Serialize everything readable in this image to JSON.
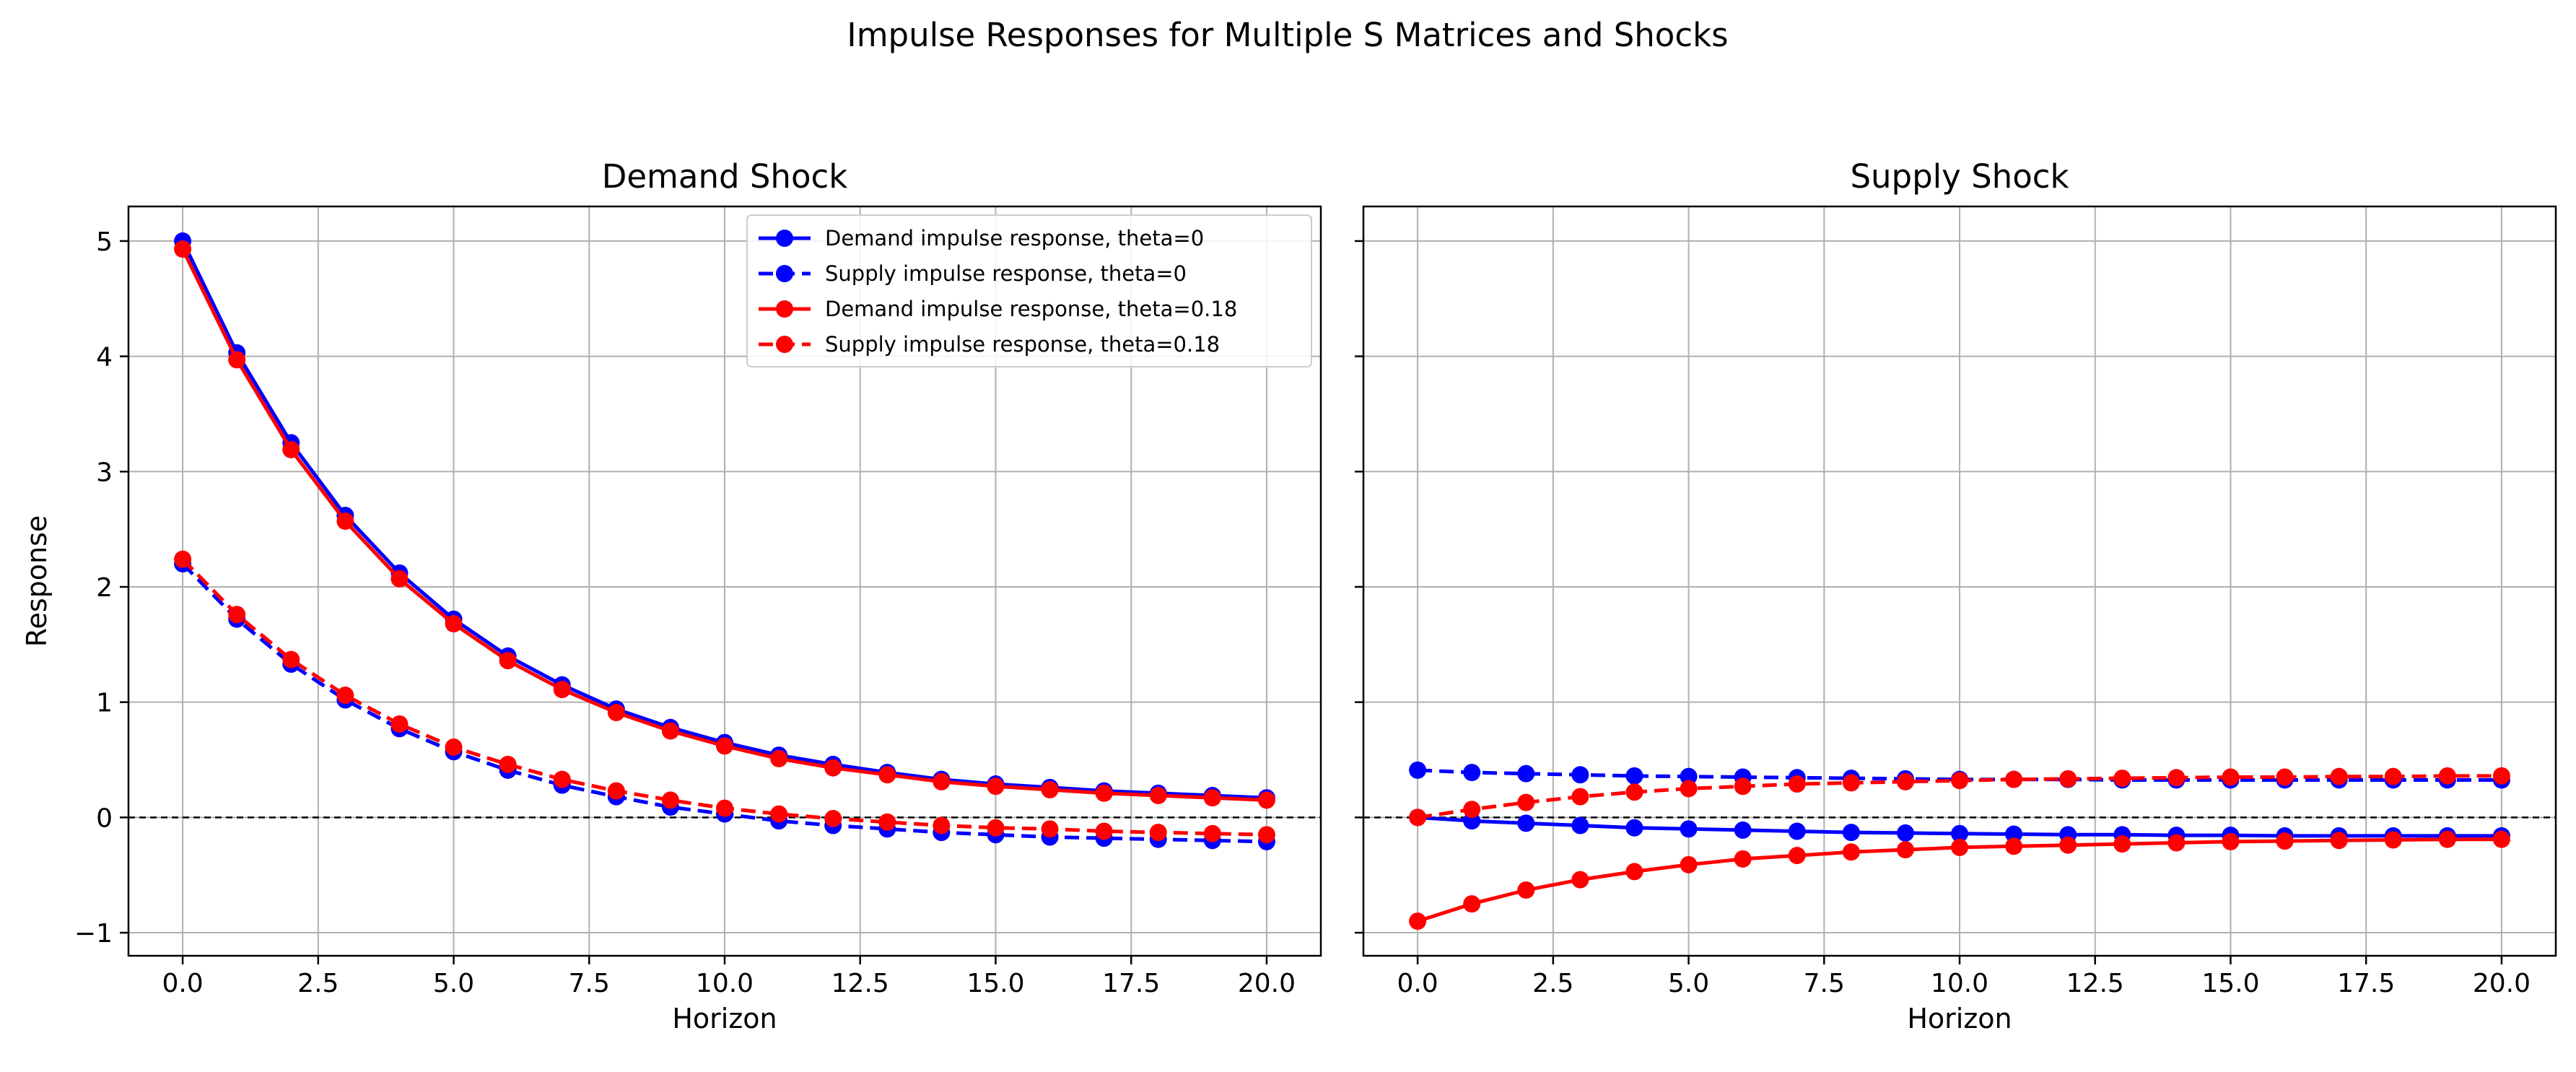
{
  "figure": {
    "suptitle": "Impulse Responses for Multiple S Matrices and Shocks"
  },
  "colors": {
    "theta0": "#0000ff",
    "theta018": "#ff0000",
    "zero_line": "#000000",
    "grid": "#b0b0b0"
  },
  "chart_data": [
    {
      "type": "line",
      "title": "Demand Shock",
      "xlabel": "Horizon",
      "ylabel": "Response",
      "xlim": [
        -1,
        21
      ],
      "ylim": [
        -1.2,
        5.3
      ],
      "xticks": [
        0,
        2.5,
        5,
        7.5,
        10,
        12.5,
        15,
        17.5,
        20
      ],
      "xtick_labels": [
        "0.0",
        "2.5",
        "5.0",
        "7.5",
        "10.0",
        "12.5",
        "15.0",
        "17.5",
        "20.0"
      ],
      "yticks": [
        -1,
        0,
        1,
        2,
        3,
        4,
        5
      ],
      "ytick_labels": [
        "−1",
        "0",
        "1",
        "2",
        "3",
        "4",
        "5"
      ],
      "grid": true,
      "legend_position": "upper-right",
      "x": [
        0,
        1,
        2,
        3,
        4,
        5,
        6,
        7,
        8,
        9,
        10,
        11,
        12,
        13,
        14,
        15,
        16,
        17,
        18,
        19,
        20
      ],
      "series": [
        {
          "name": "Demand impulse response, theta=0",
          "color": "#0000ff",
          "style": "solid",
          "values": [
            5.0,
            4.03,
            3.25,
            2.62,
            2.12,
            1.72,
            1.4,
            1.15,
            0.94,
            0.78,
            0.65,
            0.54,
            0.46,
            0.39,
            0.33,
            0.29,
            0.26,
            0.23,
            0.21,
            0.19,
            0.17
          ]
        },
        {
          "name": "Supply impulse response, theta=0",
          "color": "#0000ff",
          "style": "dashed",
          "values": [
            2.2,
            1.72,
            1.33,
            1.02,
            0.77,
            0.57,
            0.41,
            0.28,
            0.18,
            0.09,
            0.03,
            -0.03,
            -0.07,
            -0.1,
            -0.13,
            -0.15,
            -0.17,
            -0.18,
            -0.19,
            -0.2,
            -0.21
          ]
        },
        {
          "name": "Demand impulse response, theta=0.18",
          "color": "#ff0000",
          "style": "solid",
          "values": [
            4.93,
            3.97,
            3.19,
            2.57,
            2.07,
            1.68,
            1.36,
            1.11,
            0.91,
            0.75,
            0.62,
            0.51,
            0.43,
            0.37,
            0.31,
            0.27,
            0.24,
            0.21,
            0.19,
            0.17,
            0.15
          ]
        },
        {
          "name": "Supply impulse response, theta=0.18",
          "color": "#ff0000",
          "style": "dashed",
          "values": [
            2.24,
            1.76,
            1.37,
            1.06,
            0.81,
            0.61,
            0.46,
            0.33,
            0.23,
            0.15,
            0.08,
            0.03,
            -0.01,
            -0.04,
            -0.07,
            -0.09,
            -0.1,
            -0.12,
            -0.13,
            -0.14,
            -0.15
          ]
        }
      ]
    },
    {
      "type": "line",
      "title": "Supply Shock",
      "xlabel": "Horizon",
      "ylabel": "",
      "xlim": [
        -1,
        21
      ],
      "ylim": [
        -1.2,
        5.3
      ],
      "xticks": [
        0,
        2.5,
        5,
        7.5,
        10,
        12.5,
        15,
        17.5,
        20
      ],
      "xtick_labels": [
        "0.0",
        "2.5",
        "5.0",
        "7.5",
        "10.0",
        "12.5",
        "15.0",
        "17.5",
        "20.0"
      ],
      "yticks": [
        -1,
        0,
        1,
        2,
        3,
        4,
        5
      ],
      "ytick_labels": [],
      "grid": true,
      "x": [
        0,
        1,
        2,
        3,
        4,
        5,
        6,
        7,
        8,
        9,
        10,
        11,
        12,
        13,
        14,
        15,
        16,
        17,
        18,
        19,
        20
      ],
      "series": [
        {
          "name": "Demand impulse response, theta=0",
          "color": "#0000ff",
          "style": "solid",
          "values": [
            0.0,
            -0.03,
            -0.05,
            -0.07,
            -0.09,
            -0.1,
            -0.11,
            -0.12,
            -0.13,
            -0.135,
            -0.14,
            -0.145,
            -0.15,
            -0.15,
            -0.155,
            -0.155,
            -0.16,
            -0.16,
            -0.16,
            -0.16,
            -0.16
          ]
        },
        {
          "name": "Supply impulse response, theta=0",
          "color": "#0000ff",
          "style": "dashed",
          "values": [
            0.41,
            0.39,
            0.38,
            0.37,
            0.36,
            0.355,
            0.35,
            0.345,
            0.34,
            0.335,
            0.33,
            0.33,
            0.33,
            0.325,
            0.325,
            0.325,
            0.325,
            0.325,
            0.325,
            0.325,
            0.325
          ]
        },
        {
          "name": "Demand impulse response, theta=0.18",
          "color": "#ff0000",
          "style": "solid",
          "values": [
            -0.9,
            -0.75,
            -0.63,
            -0.54,
            -0.47,
            -0.41,
            -0.36,
            -0.33,
            -0.3,
            -0.28,
            -0.26,
            -0.25,
            -0.24,
            -0.23,
            -0.22,
            -0.21,
            -0.205,
            -0.2,
            -0.195,
            -0.19,
            -0.19
          ]
        },
        {
          "name": "Supply impulse response, theta=0.18",
          "color": "#ff0000",
          "style": "dashed",
          "values": [
            0.0,
            0.07,
            0.13,
            0.18,
            0.22,
            0.25,
            0.27,
            0.29,
            0.3,
            0.31,
            0.32,
            0.33,
            0.335,
            0.34,
            0.345,
            0.35,
            0.35,
            0.355,
            0.355,
            0.36,
            0.36
          ]
        }
      ]
    }
  ]
}
